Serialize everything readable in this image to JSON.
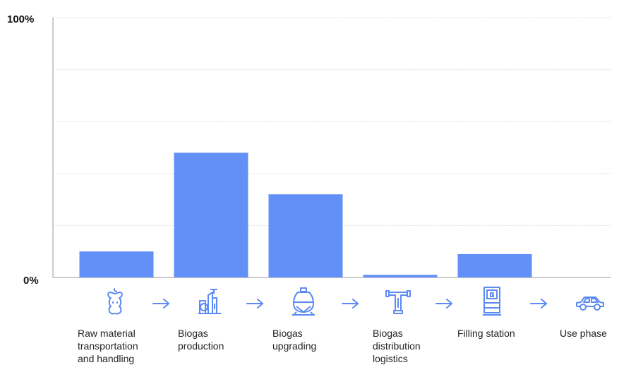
{
  "chart_data": {
    "type": "bar",
    "categories": [
      "Raw material\ntransportation\nand handling",
      "Biogas\nproduction",
      "Biogas\nupgrading",
      "Biogas\ndistribution\nlogistics",
      "Filling station",
      "Use phase"
    ],
    "values": [
      10,
      48,
      32,
      1,
      9,
      0
    ],
    "ylim": [
      0,
      100
    ],
    "yticks": [
      "0%",
      "100%"
    ],
    "grid": true,
    "bar_color": "#6290f7",
    "icon_color": "#5b8af5",
    "icons": [
      "apple-core-icon",
      "factory-icon",
      "gas-tank-icon",
      "pipeline-icon",
      "fuel-pump-icon",
      "car-icon"
    ]
  }
}
